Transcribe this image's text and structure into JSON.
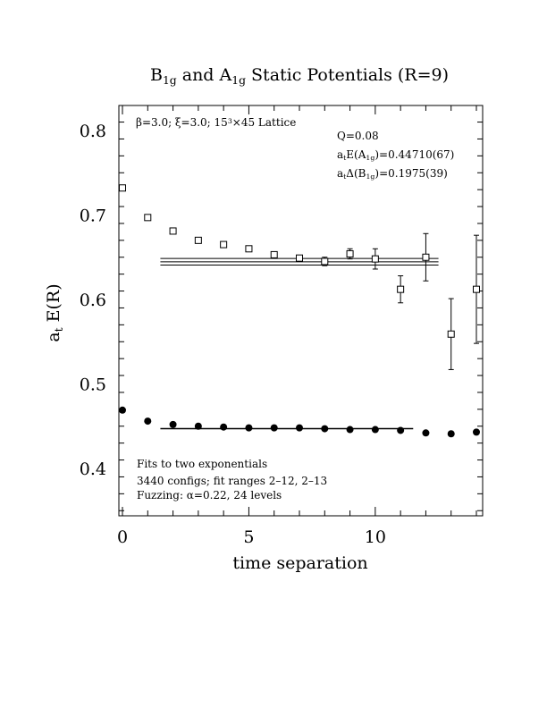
{
  "chart_data": {
    "type": "scatter",
    "title": {
      "parts": [
        {
          "t": "B",
          "sub": false
        },
        {
          "t": "1g",
          "sub": true
        },
        {
          "t": " and A",
          "sub": false
        },
        {
          "t": "1g",
          "sub": true
        },
        {
          "t": " Static Potentials (R=9)",
          "sub": false
        }
      ]
    },
    "xlabel": "time separation",
    "ylabel": {
      "parts": [
        {
          "t": "a",
          "sub": false
        },
        {
          "t": "t",
          "sub": true
        },
        {
          "t": " E(R)",
          "sub": false
        }
      ]
    },
    "xlim": [
      0,
      14
    ],
    "ylim": [
      0.34,
      0.83
    ],
    "x_ticks": [
      0,
      5,
      10
    ],
    "y_ticks": [
      0.4,
      0.5,
      0.6,
      0.7,
      0.8
    ],
    "annotations": {
      "lattice": {
        "parts": [
          {
            "t": "β=3.0; ξ=3.0; 15",
            "sup": false
          },
          {
            "t": "3",
            "sup": true
          },
          {
            "t": "×45 Lattice",
            "sup": false
          }
        ]
      },
      "q": "Q=0.08",
      "energy_a1g": {
        "parts": [
          {
            "t": "a",
            "sub": false
          },
          {
            "t": "t",
            "sub": true
          },
          {
            "t": "E(A",
            "sub": false
          },
          {
            "t": "1g",
            "sub": true
          },
          {
            "t": ")=0.44710(67)",
            "sub": false
          }
        ]
      },
      "gap_b1g": {
        "parts": [
          {
            "t": "a",
            "sub": false
          },
          {
            "t": "t",
            "sub": true
          },
          {
            "t": "Δ(B",
            "sub": false
          },
          {
            "t": "1g",
            "sub": true
          },
          {
            "t": ")=0.1975(39)",
            "sub": false
          }
        ]
      },
      "fit_method": "Fits to two exponentials",
      "fit_ranges": "3440 configs; fit ranges 2–12, 2–13",
      "fuzzing": "Fuzzing: α=0.22, 24 levels"
    },
    "series": [
      {
        "marker": "filled-circle",
        "points": [
          {
            "x": 0,
            "y": 0.469,
            "err": 0.002
          },
          {
            "x": 1,
            "y": 0.456,
            "err": 0.002
          },
          {
            "x": 2,
            "y": 0.452,
            "err": 0.002
          },
          {
            "x": 3,
            "y": 0.45,
            "err": 0.002
          },
          {
            "x": 4,
            "y": 0.449,
            "err": 0.002
          },
          {
            "x": 5,
            "y": 0.448,
            "err": 0.002
          },
          {
            "x": 6,
            "y": 0.448,
            "err": 0.002
          },
          {
            "x": 7,
            "y": 0.448,
            "err": 0.002
          },
          {
            "x": 8,
            "y": 0.447,
            "err": 0.002
          },
          {
            "x": 9,
            "y": 0.446,
            "err": 0.002
          },
          {
            "x": 10,
            "y": 0.446,
            "err": 0.002
          },
          {
            "x": 11,
            "y": 0.445,
            "err": 0.002
          },
          {
            "x": 12,
            "y": 0.442,
            "err": 0.002
          },
          {
            "x": 13,
            "y": 0.441,
            "err": 0.002
          },
          {
            "x": 14,
            "y": 0.443,
            "err": 0.002
          }
        ],
        "fit_line": {
          "x_from": 1.5,
          "x_to": 11.5,
          "y": 0.4471,
          "err": 0.00067
        }
      },
      {
        "marker": "open-square",
        "points": [
          {
            "x": 0,
            "y": 0.732,
            "err": 0.003
          },
          {
            "x": 1,
            "y": 0.697,
            "err": 0.002
          },
          {
            "x": 2,
            "y": 0.681,
            "err": 0.002
          },
          {
            "x": 3,
            "y": 0.67,
            "err": 0.002
          },
          {
            "x": 4,
            "y": 0.665,
            "err": 0.002
          },
          {
            "x": 5,
            "y": 0.66,
            "err": 0.002
          },
          {
            "x": 6,
            "y": 0.653,
            "err": 0.003
          },
          {
            "x": 7,
            "y": 0.649,
            "err": 0.003
          },
          {
            "x": 8,
            "y": 0.645,
            "err": 0.005
          },
          {
            "x": 9,
            "y": 0.654,
            "err": 0.006
          },
          {
            "x": 10,
            "y": 0.648,
            "err": 0.012
          },
          {
            "x": 11,
            "y": 0.612,
            "err": 0.016
          },
          {
            "x": 12,
            "y": 0.65,
            "err": 0.028
          },
          {
            "x": 13,
            "y": 0.559,
            "err": 0.042
          },
          {
            "x": 14,
            "y": 0.612,
            "err": 0.064
          }
        ],
        "fit_line": {
          "x_from": 1.5,
          "x_to": 12.5,
          "y": 0.6446,
          "err": 0.0039
        }
      }
    ]
  }
}
